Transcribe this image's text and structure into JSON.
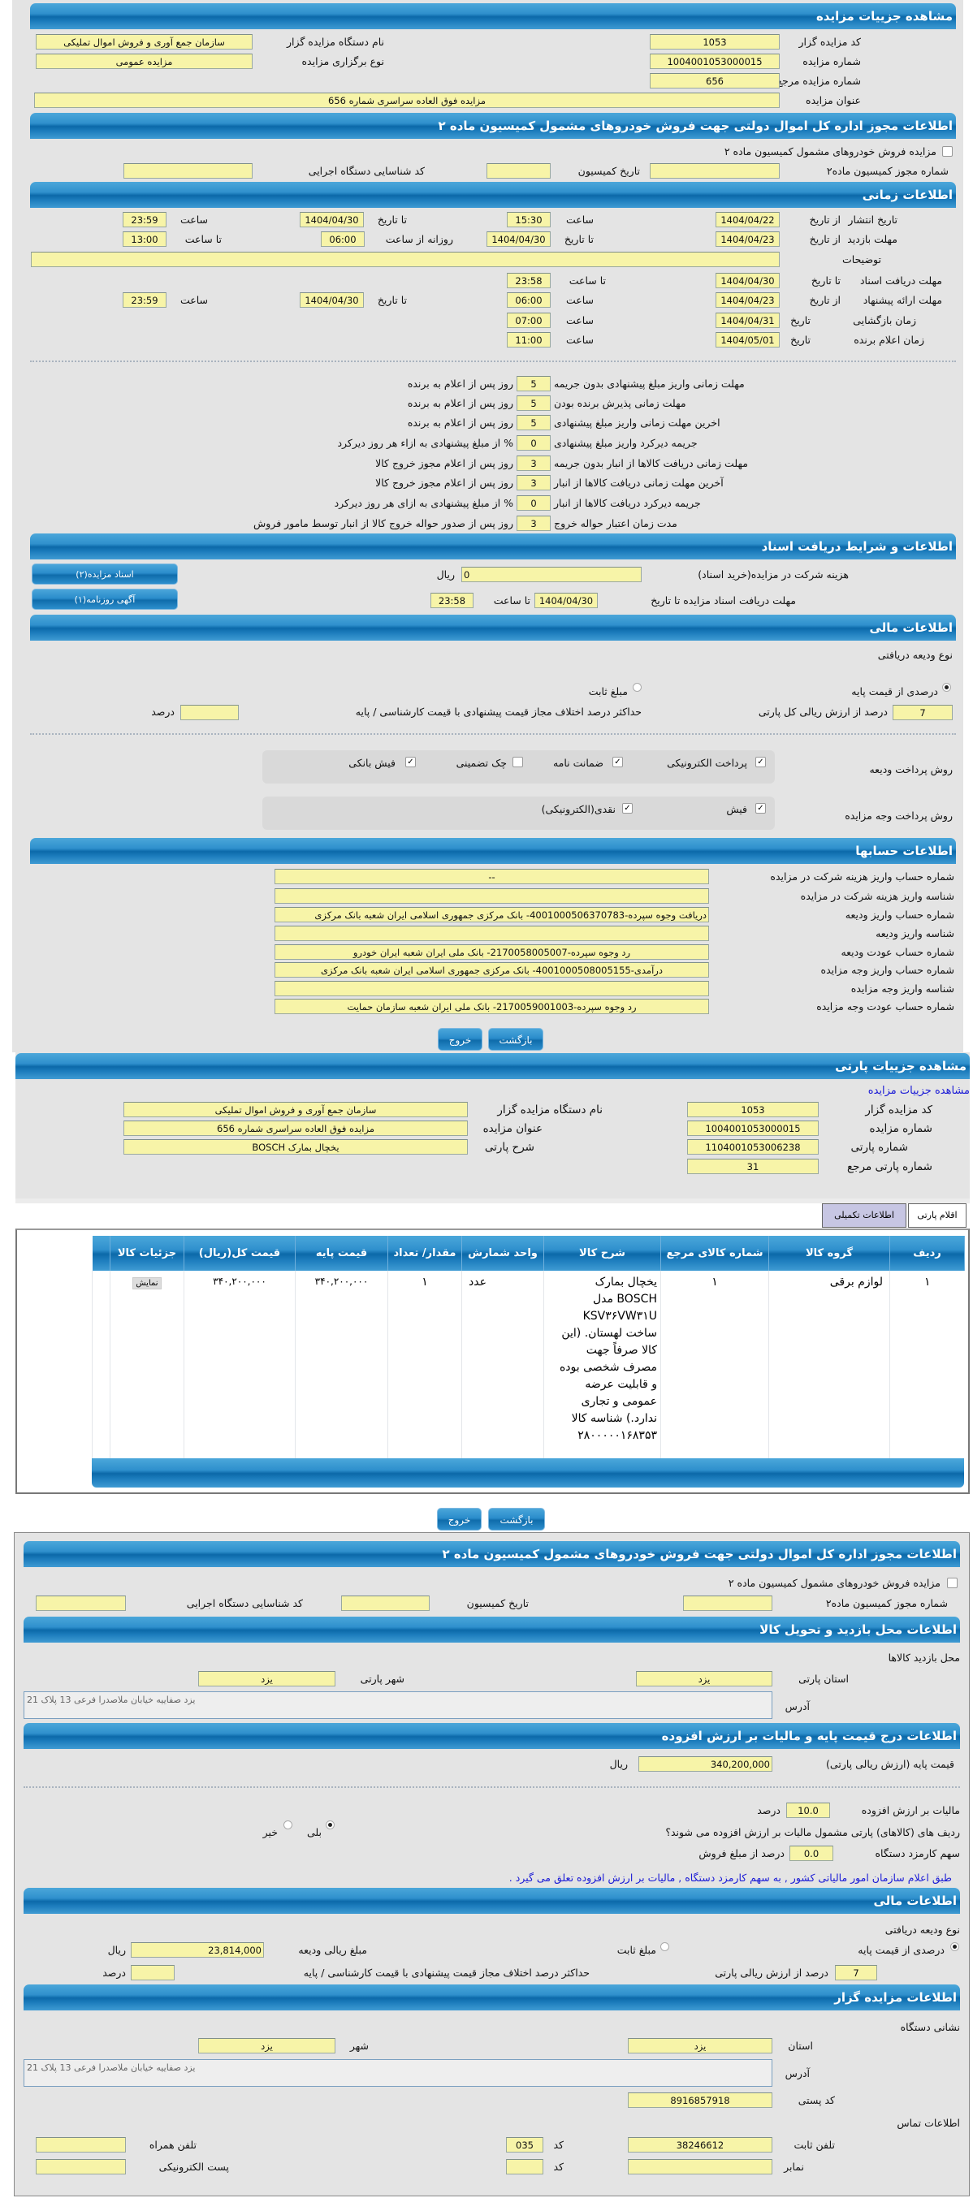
{
  "colors": {
    "header_blue": "#1d7dbd",
    "input_yellow": "#f7f4a8",
    "panel_gray": "#e4e4e4",
    "note_blue": "#1a1ad6"
  },
  "auction": {
    "title": "مشاهده جزییات مزایده",
    "code_label": "کد مزایده گزار",
    "code": "1053",
    "org_label": "نام دستگاه مزایده گزار",
    "org": "سازمان جمع آوری و فروش اموال تملیکی",
    "number_label": "شماره مزایده",
    "number": "1004001053000015",
    "type_label": "نوع برگزاری مزایده",
    "type": "مزایده عمومی",
    "ref_label": "شماره مزایده مرجع",
    "ref": "656",
    "name_label": "عنوان مزایده",
    "name": "مزایده فوق العاده سراسری شماره 656"
  },
  "permit": {
    "title": "اطلاعات مجوز اداره کل اموال دولتی جهت فروش خودروهای مشمول کمیسیون ماده ۲",
    "checkbox_label": "مزایده فروش خودروهای مشمول کمیسیون ماده ۲",
    "checked": false,
    "permit_no_label": "شماره مجوز کمیسیون ماده۲",
    "permit_no": "",
    "date_label": "تاریخ کمیسیون",
    "date": "",
    "exec_id_label": "کد شناسایی دستگاه اجرایی",
    "exec_id": ""
  },
  "timing": {
    "title": "اطلاعات زمانی",
    "publish": {
      "label": "تاریخ انتشار",
      "from_label": "از تاریخ",
      "from_date": "1404/04/22",
      "time_label": "ساعت",
      "from_time": "15:30",
      "to_label": "تا تاریخ",
      "to_date": "1404/04/30",
      "time2_label": "ساعت",
      "to_time": "23:59"
    },
    "visit": {
      "label": "مهلت بازدید",
      "from_label": "از تاریخ",
      "from_date": "1404/04/23",
      "to_label": "تا تاریخ",
      "to_date": "1404/04/30",
      "daily_label": "روزانه از ساعت",
      "daily_from": "06:00",
      "until_label": "تا ساعت",
      "daily_to": "13:00"
    },
    "description_label": "توضیحات",
    "description": "",
    "docs": {
      "label": "مهلت دریافت اسناد",
      "to_label": "تا تاریخ",
      "date": "1404/04/30",
      "time_label": "تا ساعت",
      "time": "23:58"
    },
    "bid": {
      "label": "مهلت ارائه پیشنهاد",
      "from_label": "از تاریخ",
      "from_date": "1404/04/23",
      "time_label": "ساعت",
      "from_time": "06:00",
      "to_label": "تا تاریخ",
      "to_date": "1404/04/30",
      "time2_label": "ساعت",
      "to_time": "23:59"
    },
    "opening": {
      "label": "زمان بازگشایی",
      "date_label": "تاریخ",
      "date": "1404/04/31",
      "time_label": "ساعت",
      "time": "07:00"
    },
    "winner": {
      "label": "زمان اعلام برنده",
      "date_label": "تاریخ",
      "date": "1404/05/01",
      "time_label": "ساعت",
      "time": "11:00"
    }
  },
  "deadlines": [
    {
      "label": "مهلت زمانی واریز مبلغ پیشنهادی بدون جریمه",
      "value": "5",
      "suffix": "روز پس از اعلام به برنده"
    },
    {
      "label": "مهلت زمانی پذیرش برنده بودن",
      "value": "5",
      "suffix": "روز پس از اعلام به برنده"
    },
    {
      "label": "اخرین مهلت زمانی واریز مبلغ پیشنهادی",
      "value": "5",
      "suffix": "روز پس از اعلام به برنده"
    },
    {
      "label": "جریمه دیرکرد واریز مبلغ پیشنهادی",
      "value": "0",
      "suffix": "% از مبلغ پیشنهادی به ازاء هر روز دیرکرد"
    },
    {
      "label": "مهلت زمانی دریافت کالاها از انبار بدون جریمه",
      "value": "3",
      "suffix": "روز پس از اعلام مجوز خروج کالا"
    },
    {
      "label": "آخرین مهلت زمانی دریافت کالاها از انبار",
      "value": "3",
      "suffix": "روز پس از اعلام مجوز خروج کالا"
    },
    {
      "label": "جریمه دیرکرد دریافت کالاها از انبار",
      "value": "0",
      "suffix": "% از مبلغ پیشنهادی به ازای هر روز دیرکرد"
    },
    {
      "label": "مدت زمان اعتبار حواله خروج",
      "value": "3",
      "suffix": "روز پس از صدور حواله خروج کالا از انبار توسط مامور فروش"
    }
  ],
  "documents": {
    "title": "اطلاعات و شرایط دریافت اسناد",
    "fee_label": "هزینه شرکت در مزایده(خرید اسناد)",
    "fee": "0",
    "currency": "ریال",
    "deadline_label": "مهلت دریافت اسناد مزایده تا تاریخ",
    "date": "1404/04/30",
    "time_label": "تا ساعت",
    "time": "23:58",
    "docs_button": "اسناد مزایده(۲)",
    "ad_button": "آگهی روزنامه(۱)"
  },
  "financial": {
    "title": "اطلاعات مالی",
    "deposit_type_label": "نوع ودیعه دریافتی",
    "radio_percent": "درصدی از قیمت پایه",
    "radio_fixed": "مبلغ ثابت",
    "selected": "percent",
    "percent": "7",
    "percent_suffix": "درصد از ارزش ریالی کل پارتی",
    "max_diff_label": "حداکثر درصد اختلاف مجاز قیمت پیشنهادی با قیمت کارشناسی / پایه",
    "max_diff": "",
    "percent_unit": "درصد",
    "deposit_method_label": "روش پرداخت ودیعه",
    "deposit_methods": [
      {
        "label": "پرداخت الکترونیکی",
        "checked": true
      },
      {
        "label": "ضمانت نامه",
        "checked": true
      },
      {
        "label": "چک تضمینی",
        "checked": false
      },
      {
        "label": "فیش بانکی",
        "checked": true
      }
    ],
    "payment_method_label": "روش پرداخت وجه مزایده",
    "payment_methods": [
      {
        "label": "فیش",
        "checked": true
      },
      {
        "label": "نقدی(الکترونیکی)",
        "checked": true
      }
    ]
  },
  "accounts": {
    "title": "اطلاعات حسابها",
    "rows": [
      {
        "label": "شماره حساب واریز هزینه شرکت در مزایده",
        "value": "--"
      },
      {
        "label": "شناسه واریز هزینه شرکت در مزایده",
        "value": ""
      },
      {
        "label": "شماره حساب واریز ودیعه",
        "value": "دریافت وجوه سپرده-4001000506370783- بانک مرکزی جمهوری اسلامی ایران شعبه بانک مرکزی"
      },
      {
        "label": "شناسه واریز ودیعه",
        "value": ""
      },
      {
        "label": "شماره حساب عودت ودیعه",
        "value": "رد وجوه سپرده-2170058005007- بانک ملی ایران شعبه ایران خودرو"
      },
      {
        "label": "شماره حساب واریز وجه مزایده",
        "value": "درآمدی-4001000508005155- بانک مرکزی جمهوری اسلامی ایران شعبه بانک مرکزی"
      },
      {
        "label": "شناسه واریز وجه مزایده",
        "value": ""
      },
      {
        "label": "شماره حساب عودت وجه مزایده",
        "value": "رد وجوه سپرده-2170059001003- بانک ملی ایران شعبه سازمان حمایت"
      }
    ]
  },
  "buttons": {
    "back": "بازگشت",
    "exit": "خروج"
  },
  "lot": {
    "title": "مشاهده جزییات پارتی",
    "auction_link": "مشاهده جزییات مزایده",
    "code_label": "کد مزایده گزار",
    "code": "1053",
    "org_label": "نام دستگاه مزایده گزار",
    "org": "سازمان جمع آوری و فروش اموال تملیکی",
    "number_label": "شماره مزایده",
    "number": "1004001053000015",
    "name_label": "عنوان مزایده",
    "name": "مزایده فوق العاده سراسری شماره 656",
    "lot_number_label": "شماره پارتی",
    "lot_number": "1104001053006238",
    "lot_desc_label": "شرح پارتی",
    "lot_desc": "یخچال بمارک BOSCH",
    "lot_ref_label": "شماره پارتی مرجع",
    "lot_ref": "31",
    "tabs": [
      {
        "label": "اقلام پارتی",
        "active": true
      },
      {
        "label": "اطلاعات تکمیلی",
        "active": false
      }
    ]
  },
  "items_table": {
    "columns": [
      "ردیف",
      "گروه کالا",
      "شماره کالای مرجع",
      "شرح کالا",
      "واحد شمارش",
      "مقدار/ تعداد",
      "قیمت پایه",
      "قیمت کل(ریال)",
      "جزئیات کالا"
    ],
    "rows": [
      {
        "row": "۱",
        "group": "لوازم برقی",
        "ref": "۱",
        "desc": "یخچال بمارک BOSCH مدل KSV۳۶VW۳۱U ساخت لهستان. (این کالا صرفاً جهت مصرف شخصی بوده و قابلیت عرضه عمومی و تجاری ندارد.) شناسه کالا ۲۸۰۰۰۰۰۱۶۸۳۵۳",
        "unit": "عدد",
        "qty": "۱",
        "base_price": "۳۴۰,۲۰۰,۰۰۰",
        "total": "۳۴۰,۲۰۰,۰۰۰",
        "detail_button": "نمایش"
      }
    ]
  },
  "visit_location": {
    "title": "اطلاعات محل بازدید و تحویل کالا",
    "heading": "محل بازدید کالاها",
    "province_label": "استان پارتی",
    "province": "یزد",
    "city_label": "شهر پارتی",
    "city": "یزد",
    "address_label": "آدرس",
    "address": "یزد صفاییه خیابان ملاصدرا فرعی 13 پلاک 21"
  },
  "pricing": {
    "title": "اطلاعات درج قیمت پایه و مالیات بر ارزش افزوده",
    "base_price_label": "قیمت پایه (ارزش ریالی پارتی)",
    "base_price": "340,200,000",
    "currency": "ریال",
    "vat_label": "مالیات بر ارزش افزوده",
    "vat": "10.0",
    "vat_unit": "درصد",
    "vat_applies_label": "ردیف های (کالاهای) پارتی مشمول مالیات بر ارزش افزوده می شوند؟",
    "yes": "بلی",
    "no": "خیر",
    "vat_applies": "yes",
    "fee_share_label": "سهم کارمزد دستگاه",
    "fee_share": "0.0",
    "fee_share_suffix": "درصد از مبلغ فروش",
    "note": "طبق اعلام سازمان امور مالیاتی کشور , به سهم کارمزد دستگاه , مالیات بر ارزش افزوده تعلق می گیرد ."
  },
  "financial2": {
    "title": "اطلاعات مالی",
    "deposit_type_label": "نوع ودیعه دریافتی",
    "radio_percent": "درصدی از قیمت پایه",
    "radio_fixed": "مبلغ ثابت",
    "selected": "percent",
    "deposit_amount_label": "مبلغ ریالی ودیعه",
    "deposit_amount": "23,814,000",
    "currency": "ریال",
    "percent": "7",
    "percent_suffix": "درصد از ارزش ریالی پارتی",
    "max_diff_label": "حداکثر درصد اختلاف مجاز قیمت پیشنهادی با قیمت کارشناسی / پایه",
    "max_diff": "",
    "percent_unit": "درصد"
  },
  "auctioneer": {
    "title": "اطلاعات مزایده گزار",
    "address_heading": "نشانی دستگاه",
    "province_label": "استان",
    "province": "یزد",
    "city_label": "شهر",
    "city": "یزد",
    "address_label": "آدرس",
    "address": "یزد صفاییه خیابان ملاصدرا فرعی 13 پلاک 21",
    "postal_label": "کد پستی",
    "postal": "8916857918",
    "contact_heading": "اطلاعات تماس",
    "phone_label": "تلفن ثابت",
    "phone": "38246612",
    "phone_code_label": "کد",
    "phone_code": "035",
    "mobile_label": "تلفن همراه",
    "mobile": "",
    "fax_label": "نمابر",
    "fax": "",
    "fax_code_label": "کد",
    "fax_code": "",
    "email_label": "پست الکترونیکی",
    "email": ""
  }
}
